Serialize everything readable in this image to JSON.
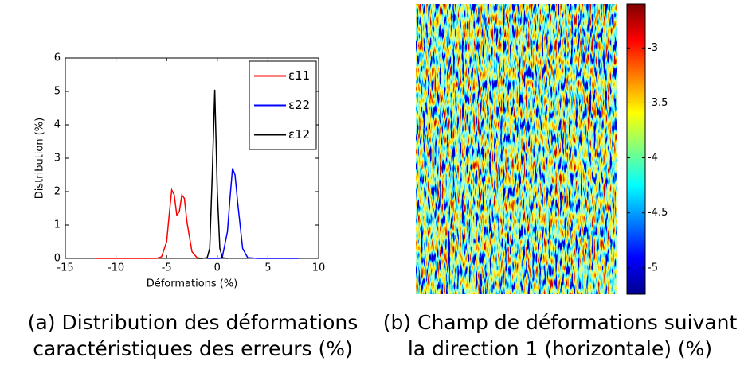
{
  "chart_data": [
    {
      "type": "line",
      "xlabel": "Déformations (%)",
      "ylabel": "Distribution (%)",
      "xlim": [
        -15,
        10
      ],
      "xticks": [
        -15,
        -10,
        -5,
        0,
        5,
        10
      ],
      "ylim": [
        0,
        6
      ],
      "yticks": [
        0,
        1,
        2,
        3,
        4,
        5,
        6
      ],
      "legend": "upper right",
      "x": [
        -12,
        -10,
        -8,
        -6,
        -5.5,
        -5,
        -4.75,
        -4.5,
        -4.25,
        -4,
        -3.75,
        -3.5,
        -3.25,
        -3,
        -2.5,
        -2,
        -1.5,
        -1,
        -0.75,
        -0.5,
        -0.25,
        0,
        0.25,
        0.5,
        1,
        1.25,
        1.5,
        1.75,
        2,
        2.5,
        3,
        4,
        6,
        8
      ],
      "series": [
        {
          "name": "ε11",
          "color": "#ff0000",
          "values": [
            0,
            0,
            0,
            0,
            0.05,
            0.5,
            1.3,
            2.05,
            1.9,
            1.3,
            1.4,
            1.9,
            1.8,
            1.1,
            0.2,
            0.02,
            0,
            null,
            null,
            null,
            null,
            null,
            null,
            null,
            null,
            null,
            null,
            null,
            null,
            null,
            null,
            null,
            null,
            null
          ]
        },
        {
          "name": "ε22",
          "color": "#0000ff",
          "values": [
            null,
            null,
            null,
            null,
            null,
            null,
            null,
            null,
            null,
            null,
            null,
            null,
            null,
            null,
            null,
            null,
            null,
            0,
            0,
            0,
            0,
            0,
            0,
            0.05,
            0.8,
            1.8,
            2.7,
            2.5,
            1.7,
            0.3,
            0.02,
            0,
            0,
            0
          ]
        },
        {
          "name": "ε12",
          "color": "#000000",
          "values": [
            null,
            null,
            null,
            null,
            null,
            null,
            null,
            null,
            null,
            null,
            null,
            null,
            null,
            null,
            null,
            0,
            0,
            0.02,
            0.3,
            2.5,
            5.05,
            2.0,
            0.3,
            0.02,
            0,
            null,
            null,
            null,
            null,
            null,
            null,
            null,
            null,
            null
          ]
        }
      ],
      "caption": [
        "(a) Distribution des déformations",
        "caractéristiques des erreurs (%)"
      ]
    },
    {
      "type": "heatmap",
      "colorbar": {
        "ylim": [
          -5.24,
          -2.6
        ],
        "yticks": [
          -5,
          -4.5,
          -4,
          -3.5,
          -3
        ]
      },
      "caption": [
        "(b) Champ de déformations suivant",
        "la direction 1 (horizontale) (%)"
      ]
    }
  ]
}
